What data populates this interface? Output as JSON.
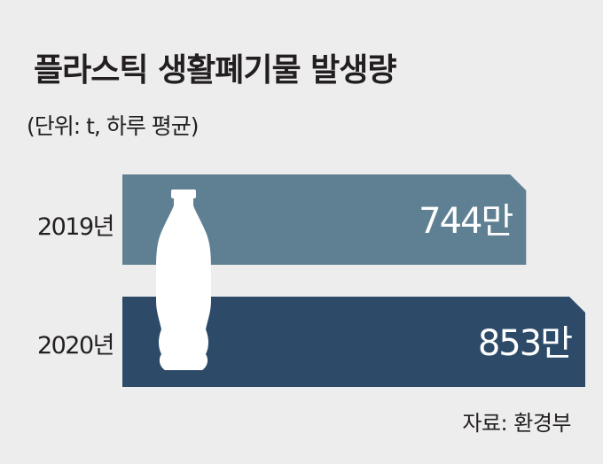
{
  "title": "플라스틱 생활폐기물 발생량",
  "unit_note": "(단위: t, 하루 평균)",
  "source": "자료: 환경부",
  "colors": {
    "bar_2019": "#5f8093",
    "bar_2020": "#2d4b69",
    "bottle": "#ffffff",
    "background": "#ededee"
  },
  "chart_data": {
    "type": "bar",
    "orientation": "horizontal",
    "categories": [
      "2019년",
      "2020년"
    ],
    "values": [
      744,
      853
    ],
    "value_labels": [
      "744만",
      "853만"
    ],
    "icon": "plastic-bottle-icon"
  }
}
